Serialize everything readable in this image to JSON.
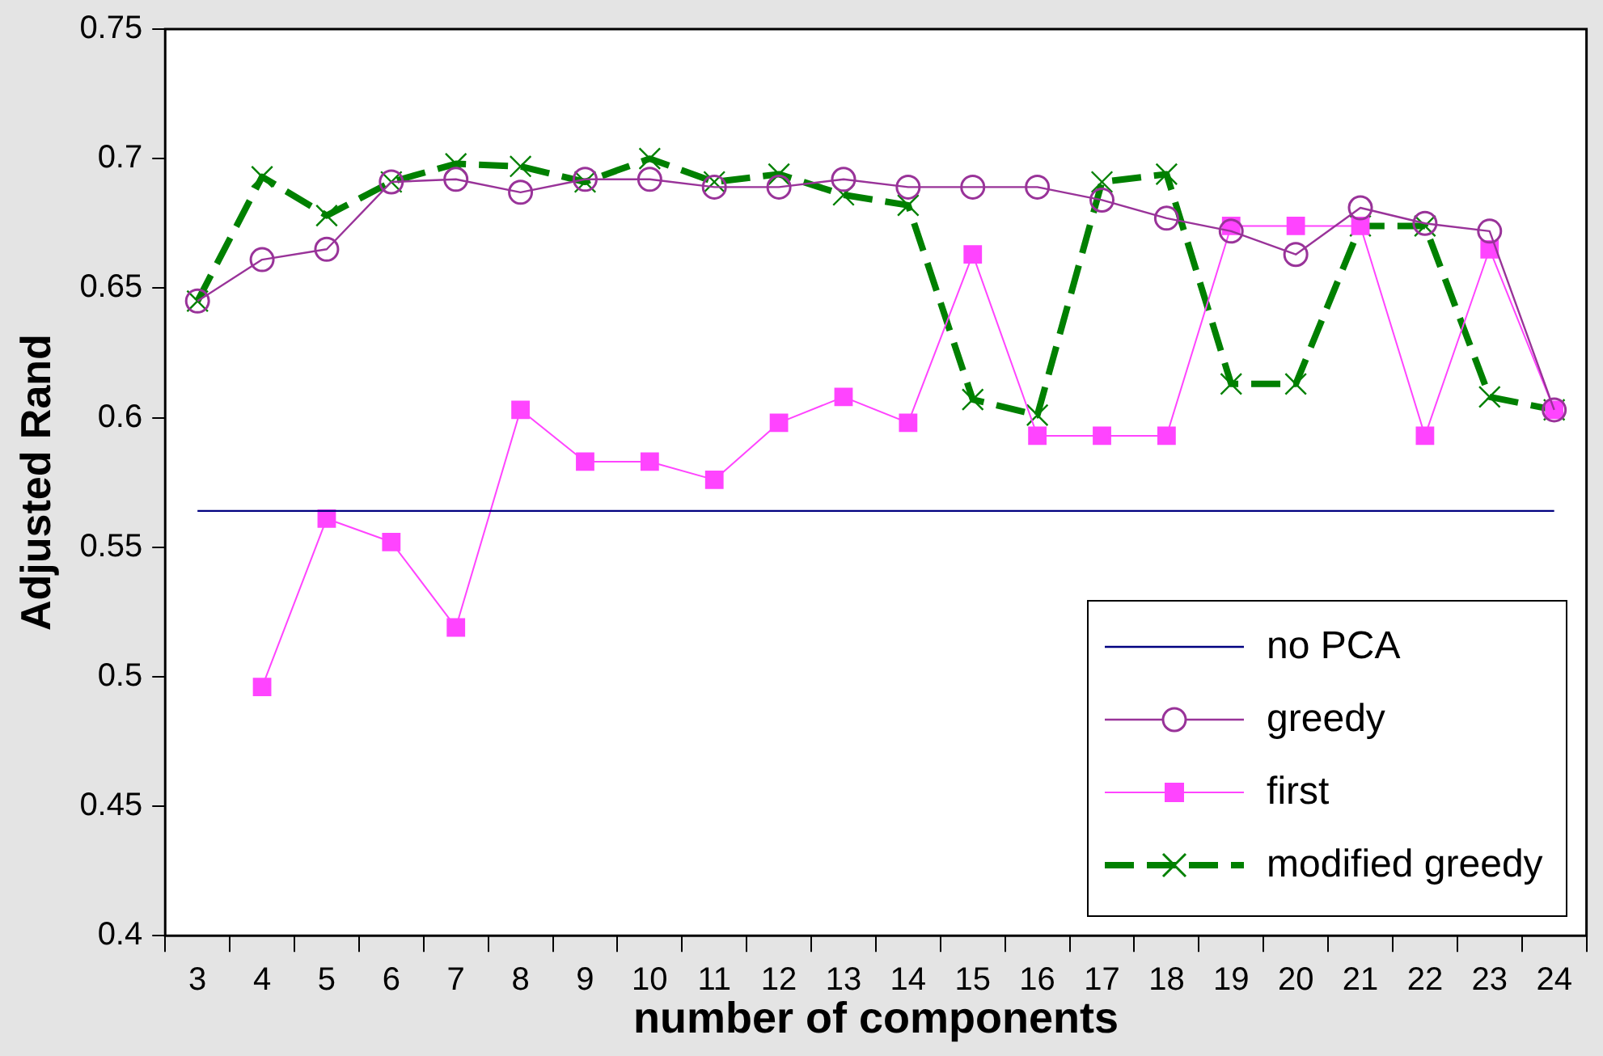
{
  "chart_data": {
    "type": "line",
    "xlabel": "number of components",
    "ylabel": "Adjusted Rand",
    "categories": [
      "3",
      "4",
      "5",
      "6",
      "7",
      "8",
      "9",
      "10",
      "11",
      "12",
      "13",
      "14",
      "15",
      "16",
      "17",
      "18",
      "19",
      "20",
      "21",
      "22",
      "23",
      "24"
    ],
    "ylim": [
      0.4,
      0.75
    ],
    "yticks": [
      0.4,
      0.45,
      0.5,
      0.55,
      0.6,
      0.65,
      0.7,
      0.75
    ],
    "grid": false,
    "legend": "bottom right",
    "series": [
      {
        "name": "no PCA",
        "color": "#000080",
        "marker": "none",
        "line_style": "solid",
        "values": [
          0.564,
          0.564,
          0.564,
          0.564,
          0.564,
          0.564,
          0.564,
          0.564,
          0.564,
          0.564,
          0.564,
          0.564,
          0.564,
          0.564,
          0.564,
          0.564,
          0.564,
          0.564,
          0.564,
          0.564,
          0.564,
          0.564
        ]
      },
      {
        "name": "greedy",
        "color": "#993399",
        "marker": "circle",
        "line_style": "solid",
        "values": [
          0.645,
          0.661,
          0.665,
          0.691,
          0.692,
          0.687,
          0.692,
          0.692,
          0.689,
          0.689,
          0.692,
          0.689,
          0.689,
          0.689,
          0.684,
          0.677,
          0.672,
          0.663,
          0.681,
          0.675,
          0.672,
          0.603
        ]
      },
      {
        "name": "first",
        "color": "#ff44ff",
        "marker": "square",
        "line_style": "solid",
        "values": [
          null,
          0.496,
          0.561,
          0.552,
          0.519,
          0.603,
          0.583,
          0.583,
          0.576,
          0.598,
          0.608,
          0.598,
          0.663,
          0.593,
          0.593,
          0.593,
          0.674,
          0.674,
          0.674,
          0.593,
          0.665,
          0.603
        ]
      },
      {
        "name": "modified greedy",
        "color": "#008000",
        "marker": "cross",
        "line_style": "dashed",
        "values": [
          0.645,
          0.693,
          0.678,
          0.691,
          0.698,
          0.697,
          0.691,
          0.7,
          0.691,
          0.694,
          0.686,
          0.682,
          0.607,
          0.601,
          0.691,
          0.694,
          0.613,
          0.613,
          0.674,
          0.674,
          0.608,
          0.603
        ]
      }
    ]
  }
}
